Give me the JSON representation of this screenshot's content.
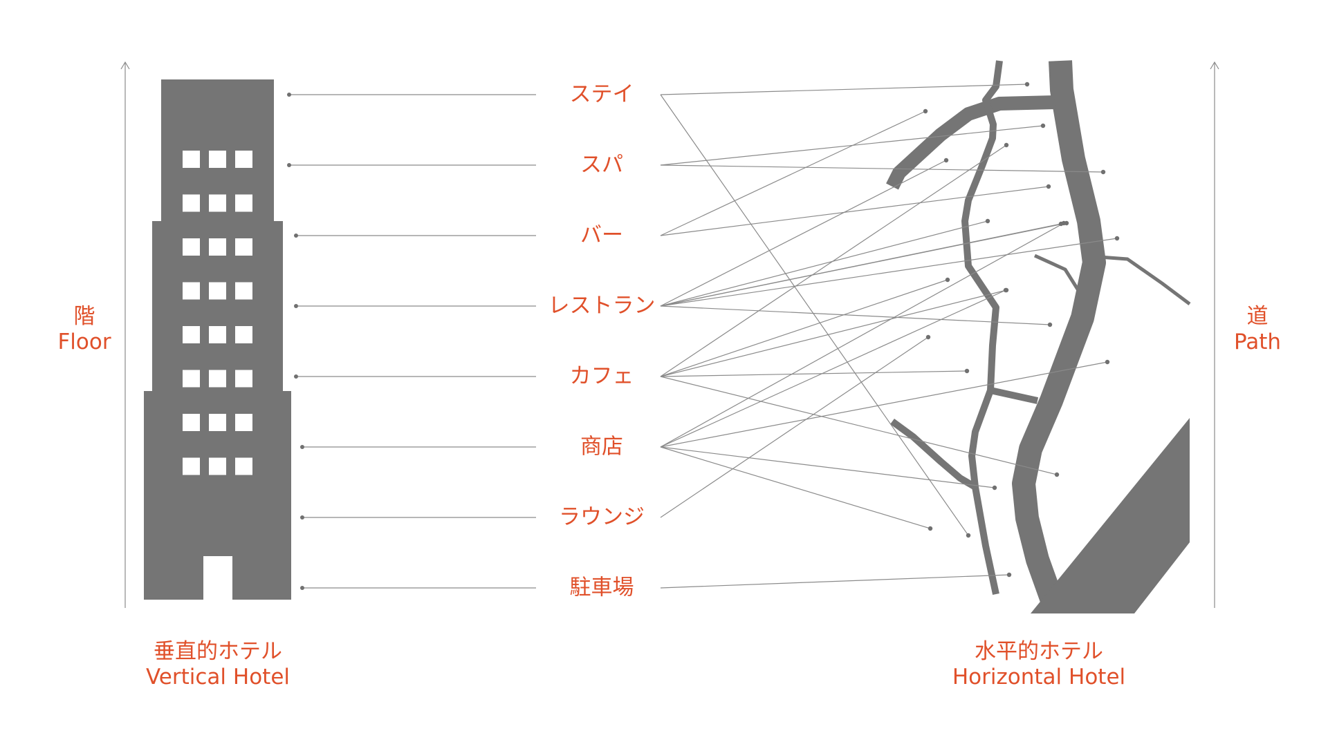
{
  "colors": {
    "accent": "#e0502a",
    "building": "#757575",
    "line": "#8a8a8a",
    "window": "#ffffff"
  },
  "left_axis": {
    "label_ja": "階",
    "label_en": "Floor"
  },
  "right_axis": {
    "label_ja": "道",
    "label_en": "Path"
  },
  "vertical_hotel": {
    "label_ja": "垂直的ホテル",
    "label_en": "Vertical Hotel"
  },
  "horizontal_hotel": {
    "label_ja": "水平的ホテル",
    "label_en": "Horizontal Hotel"
  },
  "functions": [
    "ステイ",
    "スパ",
    "バー",
    "レストラン",
    "カフェ",
    "商店",
    "ラウンジ",
    "駐車場"
  ]
}
